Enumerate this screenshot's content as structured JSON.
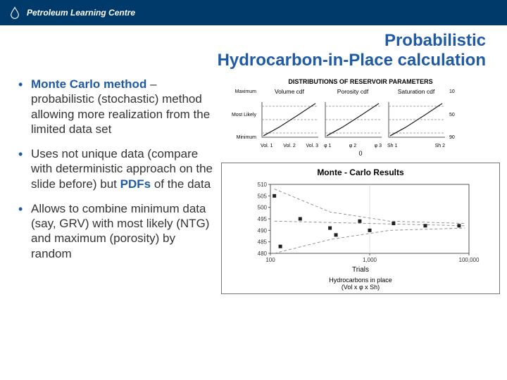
{
  "colors": {
    "header_bg": "#003a6a",
    "title_color": "#1f5aa6",
    "bullet_accent": "#1f5aa6",
    "bullet_marker": "#1f5aa6",
    "text": "#333333",
    "axis": "#555555",
    "dash": "#888888",
    "marker": "#222222"
  },
  "header": {
    "brand": "Petroleum Learning Centre"
  },
  "title_line1": "Probabilistic",
  "title_line2": "Hydrocarbon-in-Place calculation",
  "bullets": [
    {
      "lead": "Monte Carlo method",
      "rest": " – probabilistic (stochastic) method allowing more realization from the limited data set"
    },
    {
      "pre": "Uses not unique data (compare with deterministic approach on the slide before) but ",
      "accent": "PDFs",
      "post": " of the data"
    },
    {
      "plain": "Allows to combine minimum data (say, GRV) with most likely (NTG) and maximum (porosity) by random"
    }
  ],
  "dist": {
    "heading": "DISTRIBUTIONS OF RESERVOIR PARAMETERS",
    "ylabels": [
      "Maximum",
      "Most Likely",
      "Minimum"
    ],
    "right_pct": [
      "10",
      "50",
      "90"
    ],
    "panels": [
      {
        "title": "Volume cdf",
        "xticks": [
          "Vol. 1",
          "Vol. 2",
          "Vol. 3"
        ]
      },
      {
        "title": "Porosity cdf",
        "xticks": [
          "φ 1",
          "φ 2",
          "φ 3"
        ]
      },
      {
        "title": "Saturation cdf",
        "xticks": [
          "Sh 1",
          "Sh 2"
        ]
      }
    ],
    "cdf_points": [
      [
        8,
        52
      ],
      [
        30,
        40
      ],
      [
        58,
        22
      ],
      [
        82,
        6
      ]
    ],
    "zero_label": "0"
  },
  "mc": {
    "title": "Monte - Carlo Results",
    "xlabel": "Trials",
    "caption1": "Hydrocarbons in place",
    "caption2": "(Vol x φ  x Sh)",
    "yticks": [
      "510",
      "505",
      "500",
      "495",
      "490",
      "485",
      "480"
    ],
    "xticks": [
      "100",
      "1,000",
      "100,000"
    ],
    "ylim": [
      480,
      510
    ],
    "points": [
      {
        "lx": 0.02,
        "y": 505
      },
      {
        "lx": 0.05,
        "y": 483
      },
      {
        "lx": 0.15,
        "y": 495
      },
      {
        "lx": 0.3,
        "y": 491
      },
      {
        "lx": 0.33,
        "y": 488
      },
      {
        "lx": 0.45,
        "y": 494
      },
      {
        "lx": 0.5,
        "y": 490
      },
      {
        "lx": 0.62,
        "y": 493
      },
      {
        "lx": 0.78,
        "y": 492
      },
      {
        "lx": 0.95,
        "y": 492
      }
    ],
    "bands": {
      "upper": [
        [
          0.02,
          508
        ],
        [
          0.3,
          498
        ],
        [
          0.6,
          494
        ],
        [
          0.98,
          493
        ]
      ],
      "mid": [
        [
          0.02,
          494
        ],
        [
          0.98,
          492
        ]
      ],
      "lower": [
        [
          0.02,
          480
        ],
        [
          0.3,
          486
        ],
        [
          0.6,
          490
        ],
        [
          0.98,
          491
        ]
      ]
    },
    "marker_size": 5
  }
}
